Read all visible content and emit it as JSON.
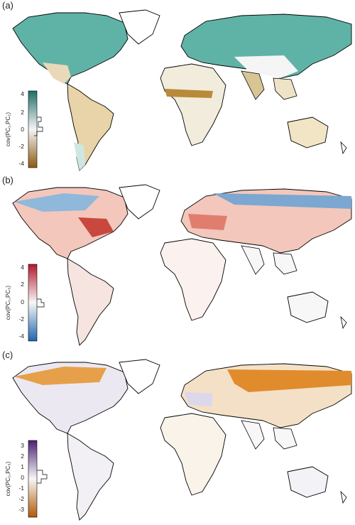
{
  "panels": [
    {
      "label": "(a)",
      "legend_title": "cov(PC₁,PC₂)",
      "ticks": [
        "4",
        "2",
        "0",
        "-2",
        "-4"
      ],
      "range": [
        -4.5,
        4.5
      ],
      "colors": {
        "high": "#1f6e66",
        "mid": "#f5f5f5",
        "low": "#8c5a12"
      }
    },
    {
      "label": "(b)",
      "legend_title": "cov(PC₁,PC₃)",
      "ticks": [
        "4",
        "2",
        "0",
        "-2",
        "-4"
      ],
      "range": [
        -4.5,
        4.5
      ],
      "colors": {
        "high": "#b2182b",
        "mid": "#f7f7f7",
        "low": "#2166ac"
      }
    },
    {
      "label": "(c)",
      "legend_title": "cov(PC₂,PC₃)",
      "ticks": [
        "3",
        "2",
        "1",
        "0",
        "-1",
        "-2",
        "-3"
      ],
      "range": [
        -3.5,
        3.5
      ],
      "colors": {
        "high": "#4b2173",
        "mid": "#f7f7f7",
        "low": "#b35806"
      }
    }
  ]
}
